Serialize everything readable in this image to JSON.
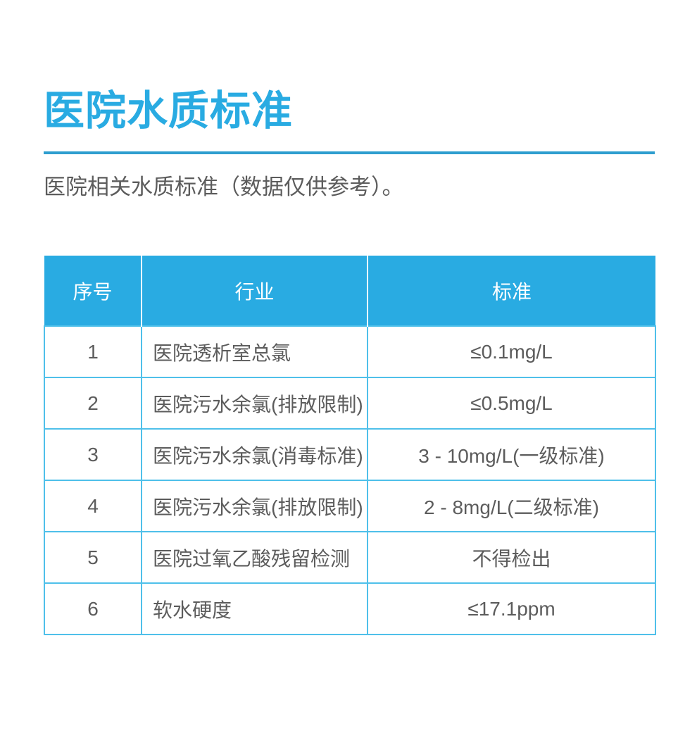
{
  "page": {
    "title": "医院水质标准",
    "subtitle": "医院相关水质标准（数据仅供参考）。"
  },
  "table": {
    "headers": [
      "序号",
      "行业",
      "标准"
    ],
    "rows": [
      {
        "no": "1",
        "industry": "医院透析室总氯",
        "standard": "≤0.1mg/L"
      },
      {
        "no": "2",
        "industry": "医院污水余氯(排放限制)",
        "standard": "≤0.5mg/L"
      },
      {
        "no": "3",
        "industry": "医院污水余氯(消毒标准)",
        "standard": "3 - 10mg/L(一级标准)"
      },
      {
        "no": "4",
        "industry": "医院污水余氯(排放限制)",
        "standard": "2 - 8mg/L(二级标准)"
      },
      {
        "no": "5",
        "industry": "医院过氧乙酸残留检测",
        "standard": "不得检出"
      },
      {
        "no": "6",
        "industry": "软水硬度",
        "standard": "≤17.1ppm"
      }
    ]
  },
  "colors": {
    "accent_blue": "#29ABE2",
    "title_rule_blue": "#2E9ECF",
    "table_grid_blue": "#4FC0EA",
    "body_text_gray": "#5C5C5C",
    "header_text": "#FFFFFF"
  }
}
